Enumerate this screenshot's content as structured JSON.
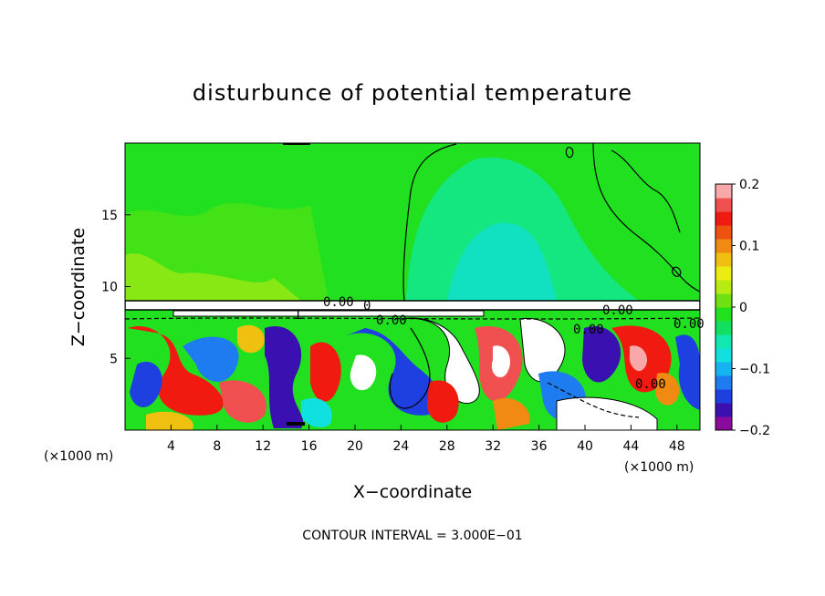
{
  "chart_data": {
    "type": "heatmap",
    "title": "disturbunce of potential temperature",
    "xlabel": "X−coordinate",
    "ylabel": "Z−coordinate",
    "x_unit": "(×1000 m)",
    "xlim": [
      0,
      50
    ],
    "ylim": [
      0,
      20
    ],
    "x_ticks": [
      4,
      8,
      12,
      16,
      20,
      24,
      28,
      32,
      36,
      40,
      44,
      48
    ],
    "y_ticks": [
      5,
      10,
      15
    ],
    "contour_interval_text": "CONTOUR INTERVAL = 3.000E−01",
    "contour_labels": [
      "0.00",
      "0.00",
      "0.00",
      "0.00",
      "0.00",
      "1",
      "0",
      "0.00"
    ],
    "colorbar": {
      "min": -0.2,
      "max": 0.2,
      "tick_values": [
        0.2,
        0.1,
        0,
        -0.1,
        -0.2
      ],
      "tick_labels": [
        "0.2",
        "0.1",
        "0",
        "−0.1",
        "−0.2"
      ],
      "colors": [
        "#8a0a9c",
        "#3a10b0",
        "#1e40e0",
        "#1e7cf0",
        "#14b4f0",
        "#10e0e0",
        "#10e8b0",
        "#10e060",
        "#20e020",
        "#70e010",
        "#b8ec10",
        "#ecec10",
        "#f0c010",
        "#f08a10",
        "#f05010",
        "#f01a10",
        "#f05050",
        "#f8a8a8"
      ]
    },
    "grid": false
  }
}
